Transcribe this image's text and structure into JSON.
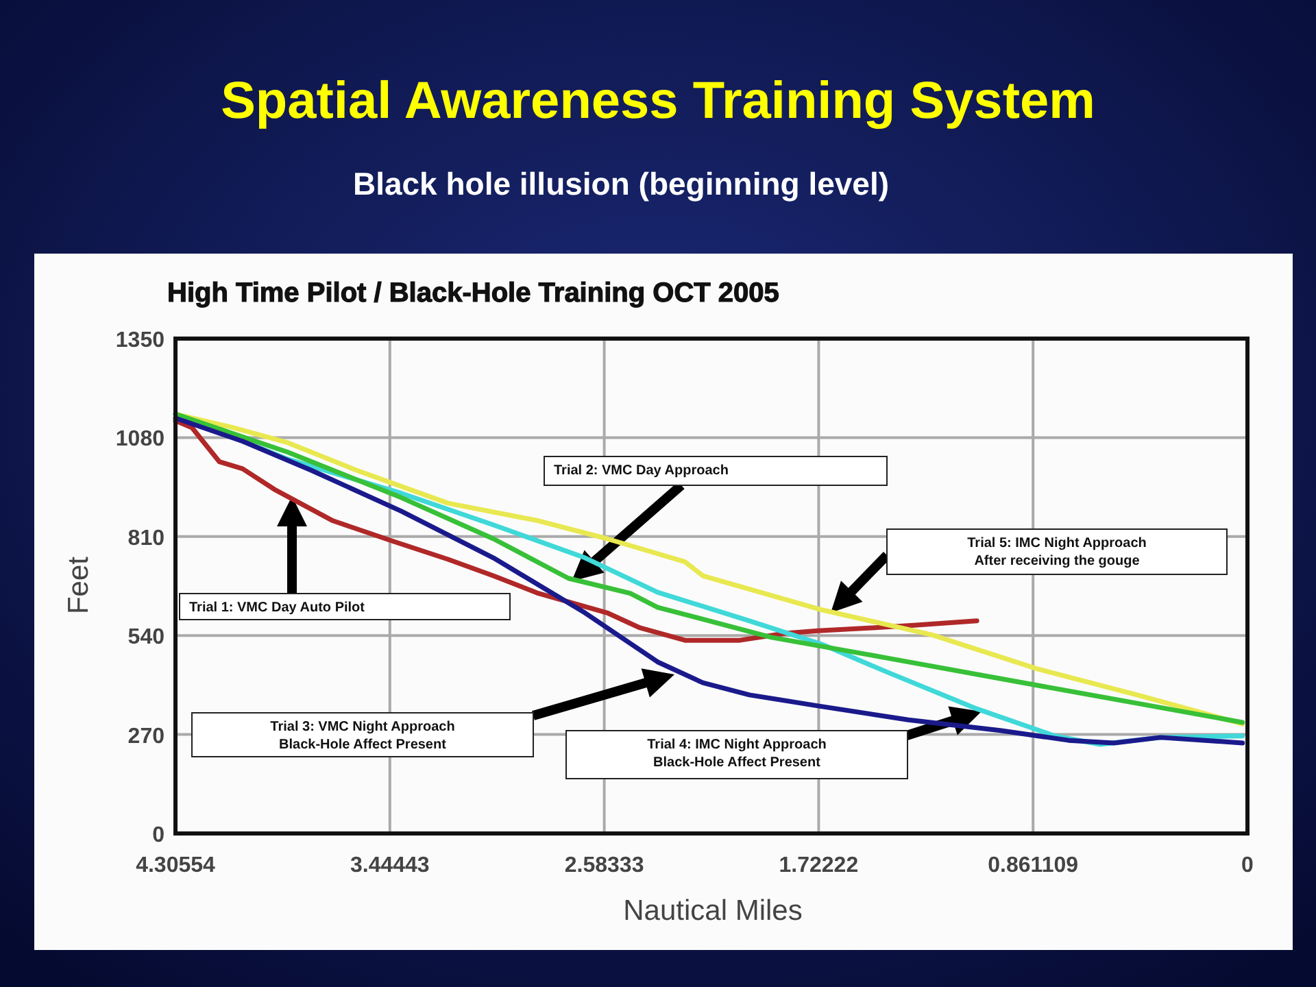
{
  "chart_data": {
    "type": "line",
    "title": "Spatial Awareness Training System",
    "subtitle": "Black hole illusion (beginning level)",
    "xlabel": "Nautical Miles",
    "ylabel": "Feet",
    "xlim": [
      4.30554,
      0
    ],
    "xticks": [
      4.30554,
      3.44443,
      2.58333,
      1.72222,
      0.861109,
      0
    ],
    "ylim": [
      0,
      1350
    ],
    "yticks": [
      0,
      270,
      540,
      810,
      1080,
      1350
    ],
    "grid": true,
    "annotations": [
      "High Time Pilot / Black-Hole Training OCT 2005",
      "Trial 1: VMC Day Auto Pilot",
      "Trial 2: VMC Day Approach",
      "Trial 5: IMC Night Approach\nAfter receiving the gouge",
      "Trial 3: VMC Night Approach\nBlack-Hole Affect Present",
      "Trial 4: IMC Night Approach\nBlack-Hole Affect Present"
    ],
    "series": [
      {
        "color": "#b02828",
        "x": [
          4.3055,
          4.239,
          4.129,
          4.036,
          3.909,
          3.673,
          3.431,
          3.211,
          3.029,
          2.848,
          2.572,
          2.44,
          2.259,
          2.039,
          1.857,
          1.725,
          1.505,
          1.34,
          1.087
        ],
        "values": [
          1126,
          1107,
          1014,
          995,
          939,
          853,
          797,
          748,
          703,
          655,
          602,
          561,
          527,
          527,
          546,
          553,
          561,
          568,
          580
        ]
      },
      {
        "color": "#e8e850",
        "x": [
          4.3055,
          4.074,
          3.854,
          3.579,
          3.211,
          2.848,
          2.572,
          2.259,
          2.187,
          1.709,
          1.268,
          0.844,
          0.443,
          0.02
        ],
        "values": [
          1144,
          1107,
          1066,
          991,
          901,
          853,
          804,
          741,
          703,
          610,
          542,
          449,
          378,
          299
        ]
      },
      {
        "color": "#40d8d8",
        "x": [
          4.3055,
          3.854,
          3.398,
          3.029,
          2.661,
          2.369,
          2.0,
          1.709,
          1.45,
          1.087,
          0.773,
          0.591,
          0.349,
          0.02
        ],
        "values": [
          1144,
          1021,
          928,
          842,
          752,
          658,
          580,
          516,
          441,
          340,
          266,
          243,
          262,
          266
        ]
      },
      {
        "color": "#38c038",
        "x": [
          4.3055,
          3.854,
          3.398,
          3.029,
          2.727,
          2.479,
          2.369,
          1.912,
          1.45,
          0.899,
          0.443,
          0.02
        ],
        "values": [
          1144,
          1040,
          916,
          804,
          696,
          655,
          617,
          535,
          479,
          411,
          355,
          303
        ]
      },
      {
        "color": "#1a1a8c",
        "x": [
          4.3055,
          4.036,
          3.761,
          3.398,
          3.029,
          2.661,
          2.369,
          2.187,
          2.0,
          1.725,
          1.362,
          0.993,
          0.718,
          0.536,
          0.349,
          0.02
        ],
        "values": [
          1133,
          1070,
          991,
          879,
          752,
          602,
          468,
          411,
          378,
          348,
          310,
          281,
          254,
          247,
          262,
          247
        ]
      }
    ]
  }
}
